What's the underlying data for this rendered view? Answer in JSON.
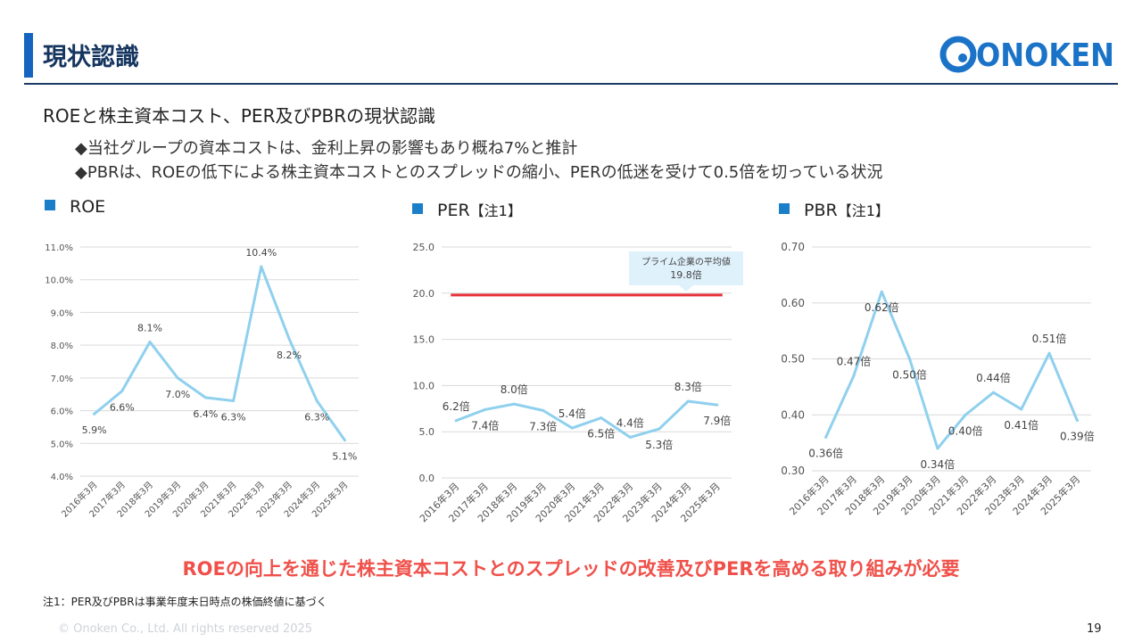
{
  "header": {
    "title": "現状認識",
    "logo_text": "ONOKEN"
  },
  "subtitle": "ROEと株主資本コスト、PER及びPBRの現状認識",
  "bullets": [
    "◆当社グループの資本コストは、金利上昇の影響もあり概ね7%と推計",
    "◆PBRは、ROEの低下による株主資本コストとのスプレッドの縮小、PERの低迷を受けて0.5倍を切っている状況"
  ],
  "colors": {
    "accent_bar": "#1565c0",
    "line": "#8fd0ee",
    "reference_line": "#e8323a",
    "conclusion": "#f0504a",
    "heading_square": "#1a7fc8"
  },
  "chart_data": [
    {
      "type": "line",
      "heading": "ROE",
      "heading_note": "",
      "categories": [
        "2016年3月",
        "2017年3月",
        "2018年3月",
        "2019年3月",
        "2020年3月",
        "2021年3月",
        "2022年3月",
        "2023年3月",
        "2024年3月",
        "2025年3月"
      ],
      "values": [
        5.9,
        6.6,
        8.1,
        7.0,
        6.4,
        6.3,
        10.4,
        8.2,
        6.3,
        5.1
      ],
      "value_labels": [
        "5.9%",
        "6.6%",
        "8.1%",
        "7.0%",
        "6.4%",
        "6.3%",
        "10.4%",
        "8.2%",
        "6.3%",
        "5.1%"
      ],
      "y_ticks": [
        "4.0%",
        "5.0%",
        "6.0%",
        "7.0%",
        "8.0%",
        "9.0%",
        "10.0%",
        "11.0%"
      ],
      "ylim": [
        4.0,
        11.0
      ],
      "grid": true
    },
    {
      "type": "line",
      "heading": "PER",
      "heading_note": "【注1】",
      "categories": [
        "2016年3月",
        "2017年3月",
        "2018年3月",
        "2019年3月",
        "2020年3月",
        "2021年3月",
        "2022年3月",
        "2023年3月",
        "2024年3月",
        "2025年3月"
      ],
      "values": [
        6.2,
        7.4,
        8.0,
        7.3,
        5.4,
        6.5,
        4.4,
        5.3,
        8.3,
        7.9
      ],
      "value_labels": [
        "6.2倍",
        "7.4倍",
        "8.0倍",
        "7.3倍",
        "5.4倍",
        "6.5倍",
        "4.4倍",
        "5.3倍",
        "8.3倍",
        "7.9倍"
      ],
      "y_ticks": [
        "0.0",
        "5.0",
        "10.0",
        "15.0",
        "20.0",
        "25.0"
      ],
      "ylim": [
        0,
        25
      ],
      "grid": true,
      "reference": {
        "value": 19.8,
        "label_line1": "プライム企業の平均値",
        "label_line2": "19.8倍"
      }
    },
    {
      "type": "line",
      "heading": "PBR",
      "heading_note": "【注1】",
      "categories": [
        "2016年3月",
        "2017年3月",
        "2018年3月",
        "2019年3月",
        "2020年3月",
        "2021年3月",
        "2022年3月",
        "2023年3月",
        "2024年3月",
        "2025年3月"
      ],
      "values": [
        0.36,
        0.47,
        0.62,
        0.5,
        0.34,
        0.4,
        0.44,
        0.41,
        0.51,
        0.39
      ],
      "value_labels": [
        "0.36倍",
        "0.47倍",
        "0.62倍",
        "0.50倍",
        "0.34倍",
        "0.40倍",
        "0.44倍",
        "0.41倍",
        "0.51倍",
        "0.39倍"
      ],
      "y_ticks": [
        "0.30",
        "0.40",
        "0.50",
        "0.60",
        "0.70"
      ],
      "ylim": [
        0.3,
        0.7
      ],
      "grid": true
    }
  ],
  "conclusion": "ROEの向上を通じた株主資本コストとのスプレッドの改善及びPERを高める取り組みが必要",
  "footnote": "注1：PER及びPBRは事業年度末日時点の株価終値に基づく",
  "copyright": "© Onoken Co., Ltd. All rights reserved 2025",
  "page_number": "19"
}
